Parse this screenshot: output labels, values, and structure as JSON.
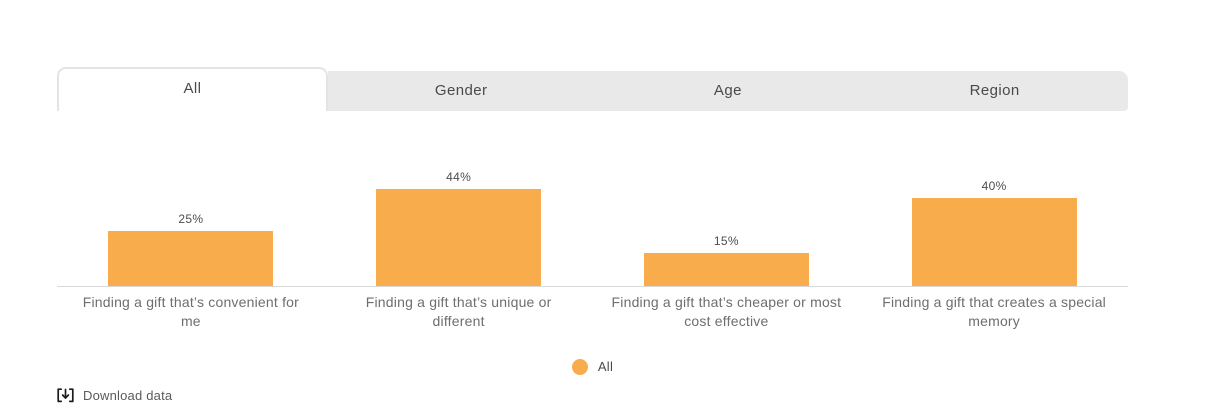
{
  "tabs": {
    "items": [
      {
        "label": "All",
        "active": true
      },
      {
        "label": "Gender",
        "active": false
      },
      {
        "label": "Age",
        "active": false
      },
      {
        "label": "Region",
        "active": false
      }
    ]
  },
  "chart_data": {
    "type": "bar",
    "title": "",
    "categories": [
      "Finding a gift that’s convenient for me",
      "Finding a gift that’s unique or different",
      "Finding a gift that’s cheaper or most cost effective",
      "Finding a gift that creates a special memory"
    ],
    "series": [
      {
        "name": "All",
        "values": [
          25,
          44,
          15,
          40
        ]
      }
    ],
    "value_labels": [
      "25%",
      "44%",
      "15%",
      "40%"
    ],
    "unit": "%",
    "ylim": [
      0,
      80
    ],
    "grid": false,
    "legend_position": "bottom",
    "bar_color": "#F8AC4B"
  },
  "legend": {
    "items": [
      {
        "label": "All",
        "color": "#F8AC4B"
      }
    ]
  },
  "download": {
    "label": "Download data"
  }
}
